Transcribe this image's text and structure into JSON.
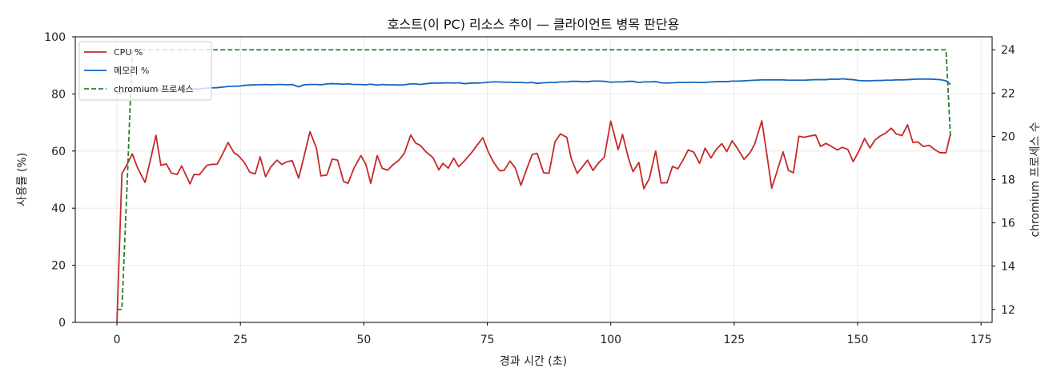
{
  "chart_data": {
    "type": "line",
    "title": "호스트(이 PC) 리소스 추이 — 클라이언트 병목 판단용",
    "xlabel": "경과 시간 (초)",
    "ylabel": "사용률 (%)",
    "y2label": "chromium 프로세스 수",
    "xlim": [
      -8.44,
      177.24
    ],
    "ylim": [
      0,
      100
    ],
    "y2lim": [
      11.4,
      24.6
    ],
    "x_ticks": [
      0,
      25,
      50,
      75,
      100,
      125,
      150,
      175
    ],
    "y_ticks": [
      0,
      20,
      40,
      60,
      80,
      100
    ],
    "y2_ticks": [
      12,
      14,
      16,
      18,
      20,
      22,
      24
    ],
    "grid": true,
    "legend_position": "upper left",
    "x": [
      0.0,
      1.0,
      2.1,
      3.1,
      4.2,
      5.7,
      6.8,
      7.9,
      8.9,
      10.0,
      11.0,
      12.2,
      13.1,
      14.8,
      15.6,
      16.7,
      18.2,
      19.0,
      20.3,
      21.4,
      22.5,
      23.7,
      24.6,
      25.8,
      26.9,
      28.0,
      29.0,
      30.1,
      31.1,
      32.4,
      33.4,
      34.5,
      35.5,
      36.8,
      37.9,
      39.1,
      40.4,
      41.3,
      42.5,
      43.6,
      44.7,
      45.9,
      46.8,
      48.0,
      49.4,
      50.4,
      51.4,
      52.7,
      53.7,
      54.8,
      55.9,
      57.1,
      58.2,
      59.5,
      60.5,
      61.4,
      62.6,
      64.0,
      65.2,
      66.0,
      67.1,
      68.2,
      69.2,
      70.5,
      71.8,
      72.9,
      74.1,
      75.2,
      76.3,
      77.5,
      78.4,
      79.6,
      80.7,
      81.8,
      83.0,
      84.1,
      85.1,
      86.4,
      87.5,
      88.7,
      89.8,
      91.1,
      92.0,
      93.2,
      94.2,
      95.3,
      96.4,
      97.6,
      98.7,
      100.0,
      101.5,
      102.4,
      103.6,
      104.5,
      105.7,
      106.7,
      107.8,
      109.1,
      110.2,
      111.4,
      112.5,
      113.6,
      114.6,
      115.7,
      116.8,
      118.0,
      119.1,
      120.3,
      121.4,
      122.5,
      123.5,
      124.6,
      125.7,
      127.0,
      128.2,
      129.1,
      130.6,
      131.6,
      132.6,
      133.7,
      134.9,
      136.0,
      137.0,
      138.1,
      139.2,
      140.4,
      141.5,
      142.5,
      143.6,
      144.7,
      145.9,
      146.9,
      148.0,
      149.1,
      150.2,
      151.4,
      152.5,
      153.5,
      154.6,
      155.7,
      156.8,
      157.8,
      159.0,
      160.1,
      161.2,
      162.2,
      163.3,
      164.5,
      165.7,
      166.7,
      167.9,
      168.8
    ],
    "series": [
      {
        "name": "CPU %",
        "axis": "left",
        "color": "#c62828",
        "style": "solid",
        "values": [
          0,
          52,
          55.5,
          59,
          54,
          49,
          57,
          65.5,
          55,
          55.5,
          52.3,
          51.8,
          54.8,
          48.5,
          51.8,
          51.7,
          55,
          55.3,
          55.4,
          59,
          63,
          59.4,
          58.4,
          56,
          52.6,
          52,
          58,
          51,
          54.3,
          56.8,
          55.3,
          56.3,
          56.6,
          50.5,
          58.2,
          66.8,
          61,
          51.3,
          51.6,
          57.2,
          56.8,
          49.3,
          48.7,
          54,
          58.4,
          55.4,
          48.7,
          58.4,
          54,
          53.3,
          55.2,
          56.8,
          59.2,
          65.6,
          62.8,
          62,
          59.7,
          57.7,
          53.4,
          55.7,
          54,
          57.5,
          54.5,
          56.8,
          59.4,
          62,
          64.7,
          59.7,
          56,
          53.1,
          53.2,
          56.5,
          54,
          48,
          53.8,
          58.8,
          59.2,
          52.4,
          52.2,
          63.2,
          66,
          64.8,
          57.4,
          52.2,
          54.3,
          56.8,
          53.2,
          56,
          57.8,
          70.5,
          60.5,
          65.8,
          57.4,
          52.8,
          56,
          46.8,
          50.3,
          60,
          48.8,
          48.9,
          54.6,
          53.8,
          56.7,
          60.4,
          59.6,
          55.7,
          61,
          57.6,
          60.6,
          62.6,
          59.8,
          63.6,
          60.8,
          57.1,
          59.4,
          62.2,
          70.6,
          59,
          47,
          53,
          59.7,
          53.2,
          52.4,
          65.2,
          64.8,
          65.3,
          65.6,
          61.6,
          62.7,
          61.6,
          60.4,
          61.3,
          60.6,
          56.3,
          59.8,
          64.4,
          61.1,
          63.8,
          65.3,
          66.3,
          68,
          66,
          65.4,
          69.2,
          63,
          63.2,
          61.6,
          62,
          60.4,
          59.4,
          59.4,
          66
        ]
      },
      {
        "name": "메모리 %",
        "axis": "left",
        "color": "#1565c0",
        "style": "solid",
        "values": [
          80.2,
          80.5,
          80.8,
          81.0,
          81.1,
          81.2,
          81.3,
          81.3,
          81.4,
          81.4,
          81.5,
          81.5,
          81.5,
          81.6,
          81.7,
          81.8,
          82.0,
          82.1,
          82.2,
          82.4,
          82.6,
          82.7,
          82.7,
          83.0,
          83.1,
          83.2,
          83.2,
          83.3,
          83.2,
          83.3,
          83.3,
          83.2,
          83.3,
          82.5,
          83.2,
          83.3,
          83.3,
          83.2,
          83.5,
          83.6,
          83.5,
          83.4,
          83.5,
          83.3,
          83.3,
          83.2,
          83.4,
          83.1,
          83.3,
          83.2,
          83.2,
          83.1,
          83.2,
          83.5,
          83.5,
          83.3,
          83.6,
          83.8,
          83.8,
          83.8,
          83.9,
          83.8,
          83.9,
          83.6,
          83.8,
          83.8,
          83.9,
          84.1,
          84.2,
          84.2,
          84.1,
          84.1,
          84.0,
          84.0,
          83.9,
          84.0,
          83.7,
          83.9,
          84.0,
          84.0,
          84.2,
          84.2,
          84.4,
          84.4,
          84.3,
          84.3,
          84.5,
          84.5,
          84.4,
          84.1,
          84.2,
          84.2,
          84.4,
          84.4,
          84.0,
          84.2,
          84.2,
          84.3,
          83.9,
          83.8,
          83.9,
          84.0,
          84.0,
          84.0,
          84.1,
          84.0,
          84.0,
          84.2,
          84.3,
          84.3,
          84.3,
          84.5,
          84.5,
          84.6,
          84.7,
          84.8,
          84.9,
          84.9,
          84.9,
          84.9,
          84.9,
          84.8,
          84.8,
          84.8,
          84.8,
          84.9,
          85.0,
          85.0,
          85.0,
          85.2,
          85.1,
          85.3,
          85.1,
          85.0,
          84.7,
          84.6,
          84.6,
          84.7,
          84.7,
          84.8,
          84.8,
          84.9,
          84.9,
          85.0,
          85.1,
          85.2,
          85.2,
          85.2,
          85.1,
          85.0,
          84.6,
          83.3
        ]
      },
      {
        "name": "chromium 프로세스",
        "axis": "right",
        "color": "#2e7d32",
        "style": "dashed",
        "values": [
          12,
          12,
          18,
          24,
          24,
          24,
          24,
          24,
          24,
          24,
          24,
          24,
          24,
          24,
          24,
          24,
          24,
          24,
          24,
          24,
          24,
          24,
          24,
          24,
          24,
          24,
          24,
          24,
          24,
          24,
          24,
          24,
          24,
          24,
          24,
          24,
          24,
          24,
          24,
          24,
          24,
          24,
          24,
          24,
          24,
          24,
          24,
          24,
          24,
          24,
          24,
          24,
          24,
          24,
          24,
          24,
          24,
          24,
          24,
          24,
          24,
          24,
          24,
          24,
          24,
          24,
          24,
          24,
          24,
          24,
          24,
          24,
          24,
          24,
          24,
          24,
          24,
          24,
          24,
          24,
          24,
          24,
          24,
          24,
          24,
          24,
          24,
          24,
          24,
          24,
          24,
          24,
          24,
          24,
          24,
          24,
          24,
          24,
          24,
          24,
          24,
          24,
          24,
          24,
          24,
          24,
          24,
          24,
          24,
          24,
          24,
          24,
          24,
          24,
          24,
          24,
          24,
          24,
          24,
          24,
          24,
          24,
          24,
          24,
          24,
          24,
          24,
          24,
          24,
          24,
          24,
          24,
          24,
          24,
          24,
          24,
          24,
          24,
          24,
          24,
          24,
          24,
          24,
          24,
          24,
          24,
          24,
          24,
          24,
          24,
          24,
          20
        ]
      }
    ]
  }
}
